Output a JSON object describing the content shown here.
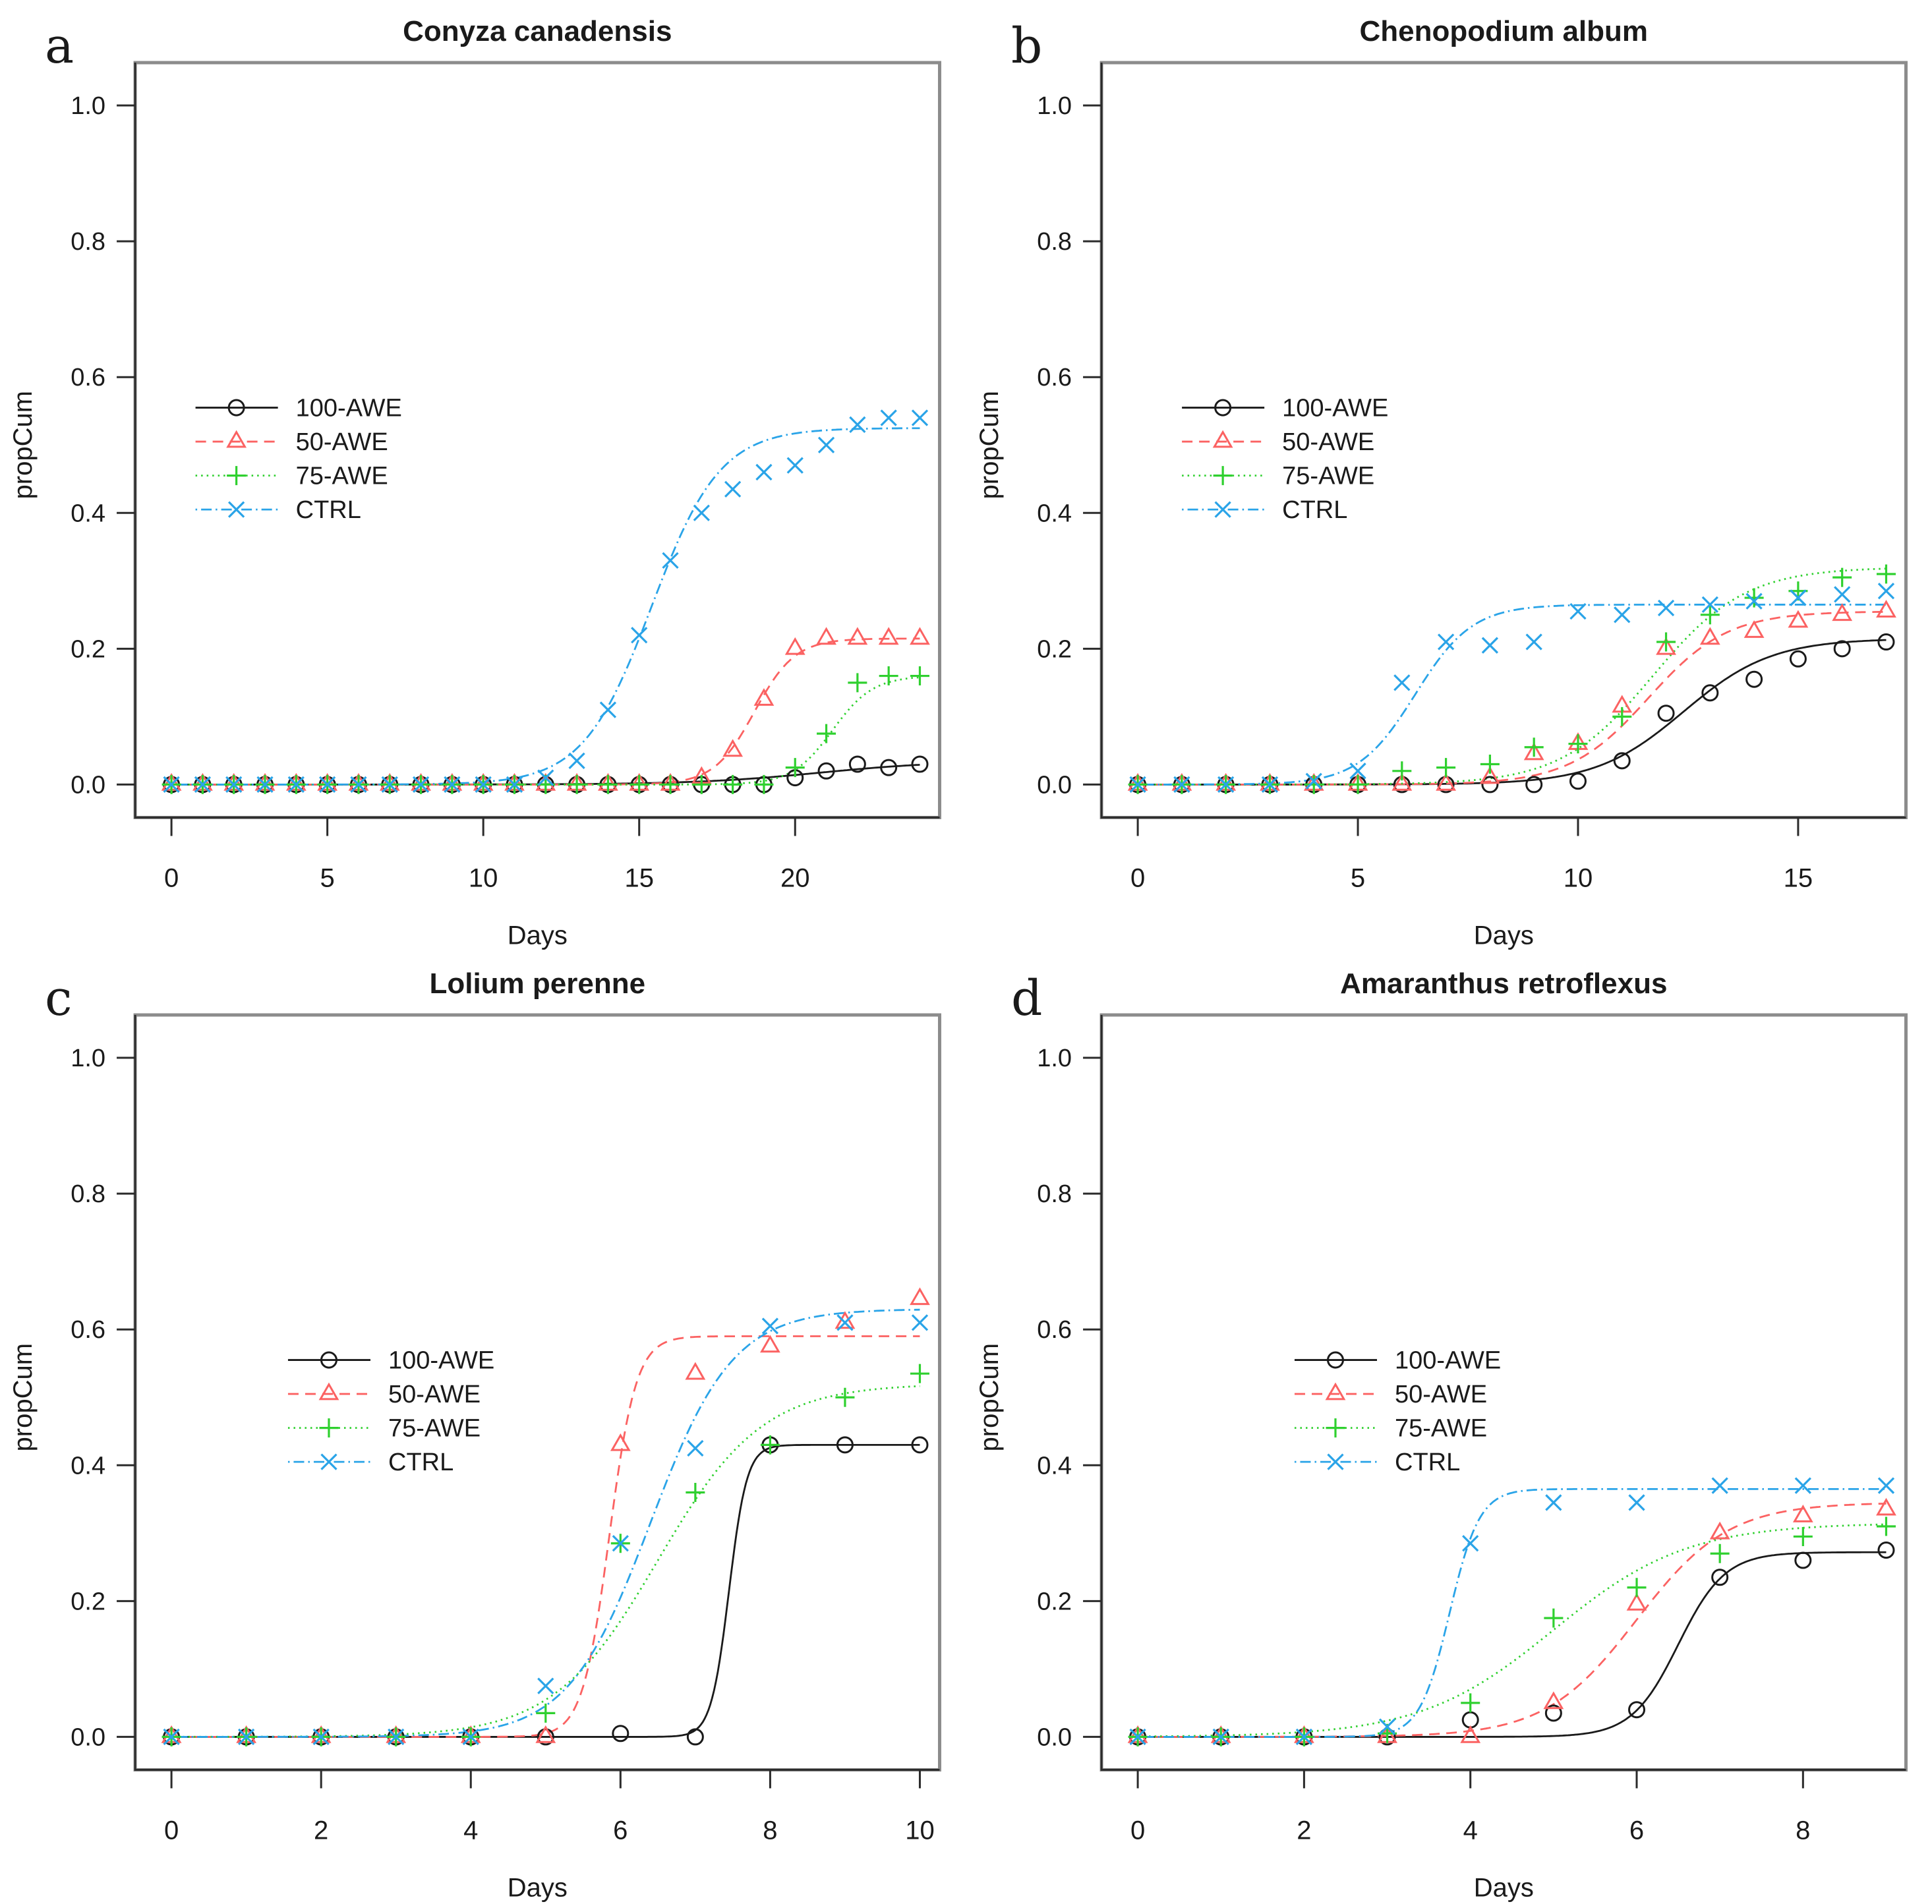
{
  "figure": {
    "background": "#ffffff",
    "axis_box_color": "#8c8c8c",
    "axis_line_color": "#2b2b2b",
    "text_color": "#1a1a1a",
    "legend_labels": [
      "100-AWE",
      "50-AWE",
      "75-AWE",
      "CTRL"
    ]
  },
  "chart_data": [
    {
      "type": "line",
      "panel_label": "a",
      "title": "Conyza canadensis",
      "xlabel": "Days",
      "ylabel": "propCum",
      "x_max": 24,
      "xticks": [
        0,
        5,
        10,
        15,
        20
      ],
      "yticks": [
        0.0,
        0.2,
        0.4,
        0.6,
        0.8,
        1.0
      ],
      "ylim": [
        0,
        1.05
      ],
      "grid": false,
      "legend": {
        "x_frac": 0.075,
        "top_value": 0.555,
        "step_value": 0.05
      },
      "x": [
        0,
        1,
        2,
        3,
        4,
        5,
        6,
        7,
        8,
        9,
        10,
        11,
        12,
        13,
        14,
        15,
        16,
        17,
        18,
        19,
        20,
        21,
        22,
        23,
        24
      ],
      "series": [
        {
          "name": "100-AWE",
          "color": "#1a1a1a",
          "marker": "circle",
          "line": "solid",
          "values": [
            0,
            0,
            0,
            0,
            0,
            0,
            0,
            0,
            0,
            0,
            0,
            0,
            0,
            0,
            0,
            0,
            0,
            0,
            0,
            0,
            0.01,
            0.02,
            0.03,
            0.025,
            0.03
          ],
          "fit": {
            "asym": 0.035,
            "xmid": 20.8,
            "scal": 2.0
          }
        },
        {
          "name": "50-AWE",
          "color": "#fb6262",
          "marker": "triangle",
          "line": "dashed",
          "values": [
            0,
            0,
            0,
            0,
            0,
            0,
            0,
            0,
            0,
            0,
            0,
            0,
            0,
            0,
            0,
            0,
            0,
            0.01,
            0.05,
            0.125,
            0.2,
            0.215,
            0.215,
            0.215,
            0.215
          ],
          "fit": {
            "asym": 0.215,
            "xmid": 18.7,
            "scal": 0.65
          }
        },
        {
          "name": "75-AWE",
          "color": "#2fd02f",
          "marker": "plus",
          "line": "dotted",
          "values": [
            0,
            0,
            0,
            0,
            0,
            0,
            0,
            0,
            0,
            0,
            0,
            0,
            0,
            0,
            0,
            0,
            0,
            0,
            0,
            0,
            0.025,
            0.075,
            0.15,
            0.16,
            0.16
          ],
          "fit": {
            "asym": 0.16,
            "xmid": 21.2,
            "scal": 0.65
          }
        },
        {
          "name": "CTRL",
          "color": "#2aa4e8",
          "marker": "x",
          "line": "dashdot",
          "values": [
            0,
            0,
            0,
            0,
            0,
            0,
            0,
            0,
            0,
            0,
            0,
            0,
            0.01,
            0.035,
            0.11,
            0.22,
            0.33,
            0.4,
            0.435,
            0.46,
            0.47,
            0.5,
            0.53,
            0.54,
            0.54
          ],
          "fit": {
            "asym": 0.525,
            "xmid": 15.4,
            "scal": 1.1
          }
        }
      ]
    },
    {
      "type": "line",
      "panel_label": "b",
      "title": "Chenopodium album",
      "xlabel": "Days",
      "ylabel": "propCum",
      "x_max": 17,
      "xticks": [
        0,
        5,
        10,
        15
      ],
      "yticks": [
        0.0,
        0.2,
        0.4,
        0.6,
        0.8,
        1.0
      ],
      "ylim": [
        0,
        1.05
      ],
      "grid": false,
      "legend": {
        "x_frac": 0.1,
        "top_value": 0.555,
        "step_value": 0.05
      },
      "x": [
        0,
        1,
        2,
        3,
        4,
        5,
        6,
        7,
        8,
        9,
        10,
        11,
        12,
        13,
        14,
        15,
        16,
        17
      ],
      "series": [
        {
          "name": "100-AWE",
          "color": "#1a1a1a",
          "marker": "circle",
          "line": "solid",
          "values": [
            0,
            0,
            0,
            0,
            0,
            0,
            0,
            0,
            0,
            0,
            0.005,
            0.035,
            0.105,
            0.135,
            0.155,
            0.185,
            0.2,
            0.21
          ],
          "fit": {
            "asym": 0.215,
            "xmid": 12.4,
            "scal": 1.0
          }
        },
        {
          "name": "50-AWE",
          "color": "#fb6262",
          "marker": "triangle",
          "line": "dashed",
          "values": [
            0,
            0,
            0,
            0,
            0,
            0,
            0,
            0,
            0.01,
            0.045,
            0.06,
            0.115,
            0.2,
            0.215,
            0.225,
            0.24,
            0.25,
            0.255
          ],
          "fit": {
            "asym": 0.255,
            "xmid": 11.6,
            "scal": 0.9
          }
        },
        {
          "name": "75-AWE",
          "color": "#2fd02f",
          "marker": "plus",
          "line": "dotted",
          "values": [
            0,
            0,
            0,
            0,
            0,
            0,
            0.02,
            0.025,
            0.03,
            0.055,
            0.06,
            0.1,
            0.21,
            0.25,
            0.275,
            0.285,
            0.305,
            0.31
          ],
          "fit": {
            "asym": 0.32,
            "xmid": 11.7,
            "scal": 1.05
          }
        },
        {
          "name": "CTRL",
          "color": "#2aa4e8",
          "marker": "x",
          "line": "dashdot",
          "values": [
            0,
            0,
            0,
            0,
            0.005,
            0.02,
            0.15,
            0.21,
            0.205,
            0.21,
            0.255,
            0.25,
            0.26,
            0.265,
            0.27,
            0.275,
            0.28,
            0.285
          ],
          "fit": {
            "asym": 0.265,
            "xmid": 6.3,
            "scal": 0.65
          }
        }
      ]
    },
    {
      "type": "line",
      "panel_label": "c",
      "title": "Lolium perenne",
      "xlabel": "Days",
      "ylabel": "propCum",
      "x_max": 10,
      "xticks": [
        0,
        2,
        4,
        6,
        8,
        10
      ],
      "yticks": [
        0.0,
        0.2,
        0.4,
        0.6,
        0.8,
        1.0
      ],
      "ylim": [
        0,
        1.05
      ],
      "grid": false,
      "legend": {
        "x_frac": 0.19,
        "top_value": 0.555,
        "step_value": 0.05
      },
      "x": [
        0,
        1,
        2,
        3,
        4,
        5,
        6,
        7,
        8,
        9,
        10
      ],
      "series": [
        {
          "name": "100-AWE",
          "color": "#1a1a1a",
          "marker": "circle",
          "line": "solid",
          "values": [
            0,
            0,
            0,
            0,
            0,
            0,
            0.005,
            0,
            0.43,
            0.43,
            0.43
          ],
          "fit": {
            "asym": 0.43,
            "xmid": 7.45,
            "scal": 0.12
          }
        },
        {
          "name": "50-AWE",
          "color": "#fb6262",
          "marker": "triangle",
          "line": "dashed",
          "values": [
            0,
            0,
            0,
            0,
            0,
            0,
            0.43,
            0.535,
            0.575,
            0.61,
            0.645
          ],
          "fit": {
            "asym": 0.59,
            "xmid": 5.85,
            "scal": 0.18
          }
        },
        {
          "name": "75-AWE",
          "color": "#2fd02f",
          "marker": "plus",
          "line": "dotted",
          "values": [
            0,
            0,
            0,
            0,
            0,
            0.035,
            0.285,
            0.36,
            0.43,
            0.5,
            0.535
          ],
          "fit": {
            "asym": 0.52,
            "xmid": 6.5,
            "scal": 0.7
          }
        },
        {
          "name": "CTRL",
          "color": "#2aa4e8",
          "marker": "x",
          "line": "dashdot",
          "values": [
            0,
            0,
            0,
            0,
            0,
            0.075,
            0.285,
            0.425,
            0.605,
            0.61,
            0.61
          ],
          "fit": {
            "asym": 0.63,
            "xmid": 6.4,
            "scal": 0.55
          }
        }
      ]
    },
    {
      "type": "line",
      "panel_label": "d",
      "title": "Amaranthus retroflexus",
      "xlabel": "Days",
      "ylabel": "propCum",
      "x_max": 9,
      "xticks": [
        0,
        2,
        4,
        6,
        8
      ],
      "yticks": [
        0.0,
        0.2,
        0.4,
        0.6,
        0.8,
        1.0
      ],
      "ylim": [
        0,
        1.05
      ],
      "grid": false,
      "legend": {
        "x_frac": 0.24,
        "top_value": 0.555,
        "step_value": 0.05
      },
      "x": [
        0,
        1,
        2,
        3,
        4,
        5,
        6,
        7,
        8,
        9
      ],
      "series": [
        {
          "name": "100-AWE",
          "color": "#1a1a1a",
          "marker": "circle",
          "line": "solid",
          "values": [
            0,
            0,
            0,
            0,
            0.025,
            0.035,
            0.04,
            0.235,
            0.26,
            0.275
          ],
          "fit": {
            "asym": 0.272,
            "xmid": 6.5,
            "scal": 0.28
          }
        },
        {
          "name": "50-AWE",
          "color": "#fb6262",
          "marker": "triangle",
          "line": "dashed",
          "values": [
            0,
            0,
            0,
            0,
            0,
            0.05,
            0.195,
            0.3,
            0.325,
            0.335
          ],
          "fit": {
            "asym": 0.345,
            "xmid": 6.0,
            "scal": 0.55
          }
        },
        {
          "name": "75-AWE",
          "color": "#2fd02f",
          "marker": "plus",
          "line": "dotted",
          "values": [
            0,
            0,
            0,
            0.005,
            0.05,
            0.175,
            0.22,
            0.27,
            0.295,
            0.31
          ],
          "fit": {
            "asym": 0.315,
            "xmid": 5.0,
            "scal": 0.8
          }
        },
        {
          "name": "CTRL",
          "color": "#2aa4e8",
          "marker": "x",
          "line": "dashdot",
          "values": [
            0,
            0,
            0,
            0.015,
            0.285,
            0.345,
            0.345,
            0.37,
            0.37,
            0.37
          ],
          "fit": {
            "asym": 0.365,
            "xmid": 3.75,
            "scal": 0.18
          }
        }
      ]
    }
  ]
}
